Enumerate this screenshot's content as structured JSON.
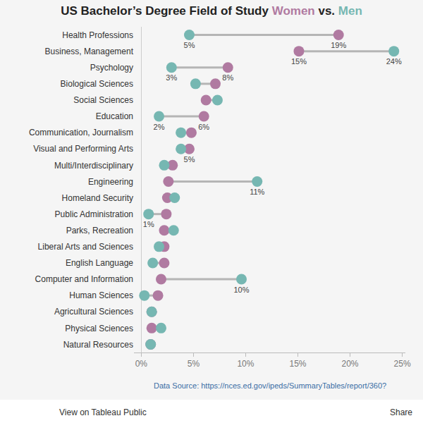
{
  "chart_data": {
    "type": "dumbbell",
    "title": "US Bachelor’s Degree Field of Study Women vs. Men",
    "categories": [
      "Health Professions",
      "Business, Management",
      "Psychology",
      "Biological Sciences",
      "Social Sciences",
      "Education",
      "Communication, Journalism",
      "Visual and Performing Arts",
      "Multi/Interdisciplinary",
      "Engineering",
      "Homeland Security",
      "Public Administration",
      "Parks, Recreation",
      "Liberal Arts and Sciences",
      "English Language",
      "Computer and Information",
      "Human Sciences",
      "Agricultural Sciences",
      "Physical Sciences",
      "Natural Resources"
    ],
    "series": [
      {
        "name": "Women",
        "color": "#b07aa1",
        "values": [
          18.9,
          15.1,
          8.3,
          7.1,
          6.2,
          6.0,
          4.8,
          4.6,
          3.0,
          2.6,
          2.5,
          2.4,
          2.2,
          2.2,
          2.2,
          1.9,
          1.6,
          1.0,
          1.0,
          0.9
        ],
        "value_labels": [
          "19%",
          "15%",
          "8%",
          null,
          null,
          "6%",
          null,
          "5%",
          null,
          null,
          null,
          null,
          null,
          null,
          null,
          null,
          null,
          null,
          null,
          null
        ]
      },
      {
        "name": "Men",
        "color": "#76b7b2",
        "values": [
          4.6,
          24.2,
          2.9,
          5.2,
          7.3,
          1.7,
          3.8,
          3.8,
          2.2,
          11.1,
          3.2,
          0.7,
          3.1,
          1.7,
          1.1,
          9.6,
          0.3,
          1.0,
          1.9,
          0.9
        ],
        "value_labels": [
          "5%",
          "24%",
          "3%",
          null,
          null,
          "2%",
          null,
          null,
          null,
          "11%",
          null,
          "1%",
          null,
          null,
          null,
          "10%",
          null,
          null,
          null,
          null
        ]
      }
    ],
    "orientation": "horizontal",
    "xlim": [
      -0.7,
      25.3
    ],
    "xticks": [
      {
        "value": 0,
        "label": "0%"
      },
      {
        "value": 5,
        "label": "5%"
      },
      {
        "value": 10,
        "label": "10%"
      },
      {
        "value": 15,
        "label": "15%"
      },
      {
        "value": 20,
        "label": "20%"
      },
      {
        "value": 25,
        "label": "25%"
      }
    ],
    "grid": false,
    "data_labels": true,
    "source": "Data Source: https://nces.ed.gov/ipeds/SummaryTables/report/360?",
    "toolbar": [
      "View on Tableau Public",
      "Share"
    ]
  }
}
